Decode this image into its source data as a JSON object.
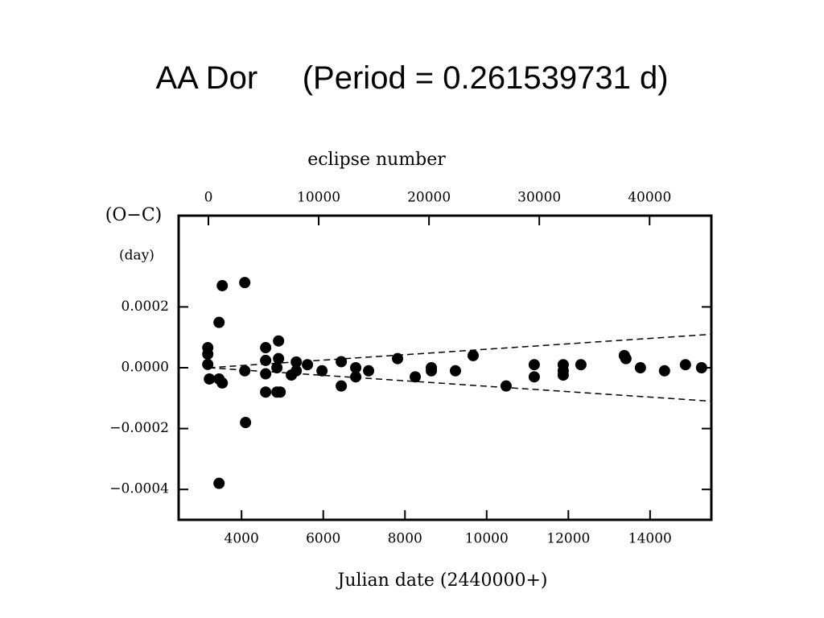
{
  "chart_data": {
    "type": "scatter",
    "title": "AA Dor     (Period = 0.261539731 d)",
    "x_label": "Julian date (2440000+)",
    "x2_label": "eclipse number",
    "y_label": "(O−C)",
    "y_unit": "(day)",
    "xlim": [
      2460,
      15500
    ],
    "xticks": [
      4000,
      6000,
      8000,
      10000,
      12000,
      14000
    ],
    "x2lim": [
      -2700,
      45600
    ],
    "x2ticks": [
      0,
      10000,
      20000,
      30000,
      40000
    ],
    "ylim": [
      -0.0005,
      0.0005
    ],
    "yticks": [
      0.0002,
      {
        "value": 0,
        "label": "0.0000"
      },
      {
        "value": -0.0002,
        "label": "−0.0002"
      },
      {
        "value": -0.0004,
        "label": "−0.0004"
      }
    ],
    "series": [
      {
        "color": "#000000",
        "x": [
          3173,
          3173,
          3173,
          3213,
          3449,
          3528,
          3449,
          3528,
          3449,
          4079,
          4079,
          4098,
          4590,
          4590,
          4590,
          4590,
          4866,
          4866,
          4906,
          4906,
          4945,
          5220,
          5339,
          5339,
          5614,
          5969,
          6441,
          6441,
          6795,
          6795,
          7110,
          7819,
          8252,
          8646,
          8646,
          9236,
          9669,
          10476,
          11165,
          11165,
          11874,
          11874,
          11874,
          12307,
          13370,
          13409,
          13764,
          14354,
          14866,
          15260
        ],
        "values": [
          6.6e-05,
          4.5e-05,
          1.1e-05,
          -3.7e-05,
          0.000149,
          0.00027,
          -3.7e-05,
          -5e-05,
          -0.00038,
          0.00028,
          -1e-05,
          -0.00018,
          6.6e-05,
          2.4e-05,
          -2e-05,
          -8e-05,
          0.0,
          -8e-05,
          8.8e-05,
          3e-05,
          -8e-05,
          -2.4e-05,
          1.9e-05,
          -1e-05,
          1e-05,
          -1e-05,
          2e-05,
          -6e-05,
          0.0,
          -3e-05,
          -1e-05,
          3e-05,
          -3e-05,
          0.0,
          -1e-05,
          -1e-05,
          4e-05,
          -6e-05,
          1e-05,
          -3e-05,
          1e-05,
          -1e-05,
          -2.4e-05,
          1e-05,
          4e-05,
          3e-05,
          0.0,
          -1e-05,
          1e-05,
          0.0
        ]
      }
    ],
    "lines": [
      {
        "x": [
          3200,
          15500
        ],
        "values": [
          0,
          0.00011
        ],
        "color": "#000000"
      },
      {
        "x": [
          3200,
          15500
        ],
        "values": [
          0,
          -0.00011
        ],
        "color": "#000000"
      }
    ],
    "line_style": "dashed"
  }
}
